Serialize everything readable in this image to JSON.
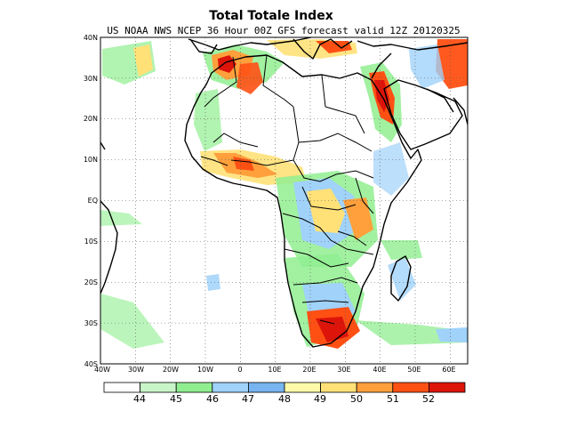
{
  "title": "Total Totale Index",
  "subtitle": "US NOAA NWS NCEP 36 Hour 00Z GFS forecast valid 12Z 20120325",
  "map": {
    "lat_labels": [
      "40N",
      "30N",
      "20N",
      "10N",
      "EQ",
      "10S",
      "20S",
      "30S",
      "40S"
    ],
    "lat_values": [
      40,
      30,
      20,
      10,
      0,
      -10,
      -20,
      -30,
      -40
    ],
    "lon_labels": [
      "40W",
      "30W",
      "20W",
      "10W",
      "0",
      "10E",
      "20E",
      "30E",
      "40E",
      "50E",
      "60E"
    ],
    "lon_values": [
      -40,
      -30,
      -20,
      -10,
      0,
      10,
      20,
      30,
      40,
      50,
      60
    ],
    "lon_range": [
      -40,
      65
    ],
    "lat_range": [
      -40,
      40
    ],
    "gridlines": "dotted"
  },
  "colorbar": {
    "labels": [
      "44",
      "45",
      "46",
      "47",
      "48",
      "49",
      "50",
      "51",
      "52"
    ],
    "colors": [
      "#ffffff",
      "#c8f5c8",
      "#90ee90",
      "#a0d2fa",
      "#78b4f0",
      "#fffaaa",
      "#ffe178",
      "#ffa03c",
      "#ff5014",
      "#dc140a"
    ]
  }
}
